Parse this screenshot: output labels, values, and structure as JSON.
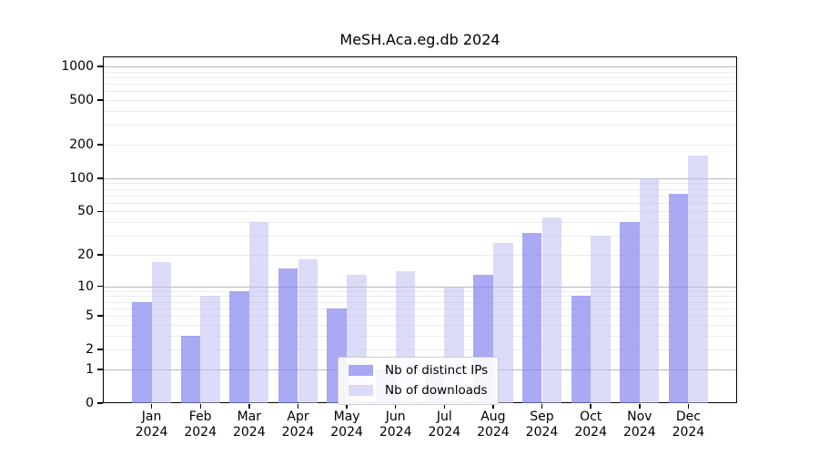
{
  "chart_data": {
    "type": "bar",
    "title": "MeSH.Aca.eg.db 2024",
    "year_label": "2024",
    "categories": [
      "Jan",
      "Feb",
      "Mar",
      "Apr",
      "May",
      "Jun",
      "Jul",
      "Aug",
      "Sep",
      "Oct",
      "Nov",
      "Dec"
    ],
    "series": [
      {
        "name": "Nb of distinct IPs",
        "color": "#A9A9F4",
        "fill": "rgba(132,132,239,0.70)",
        "values": [
          7,
          3,
          9,
          15,
          6,
          1,
          1,
          13,
          32,
          8,
          40,
          72
        ]
      },
      {
        "name": "Nb of downloads",
        "color": "#DCDCF8",
        "fill": "rgba(191,191,242,0.55)",
        "values": [
          17,
          8,
          40,
          18,
          13,
          14,
          10,
          26,
          44,
          30,
          100,
          160
        ]
      }
    ],
    "yscale": "log1p",
    "yticks": [
      0,
      1,
      2,
      5,
      10,
      20,
      50,
      100,
      200,
      500,
      1000
    ],
    "ylim": [
      0,
      1230
    ],
    "xlabel": "",
    "ylabel": "",
    "grid": true,
    "legend_position": "bottom-center-inside"
  }
}
